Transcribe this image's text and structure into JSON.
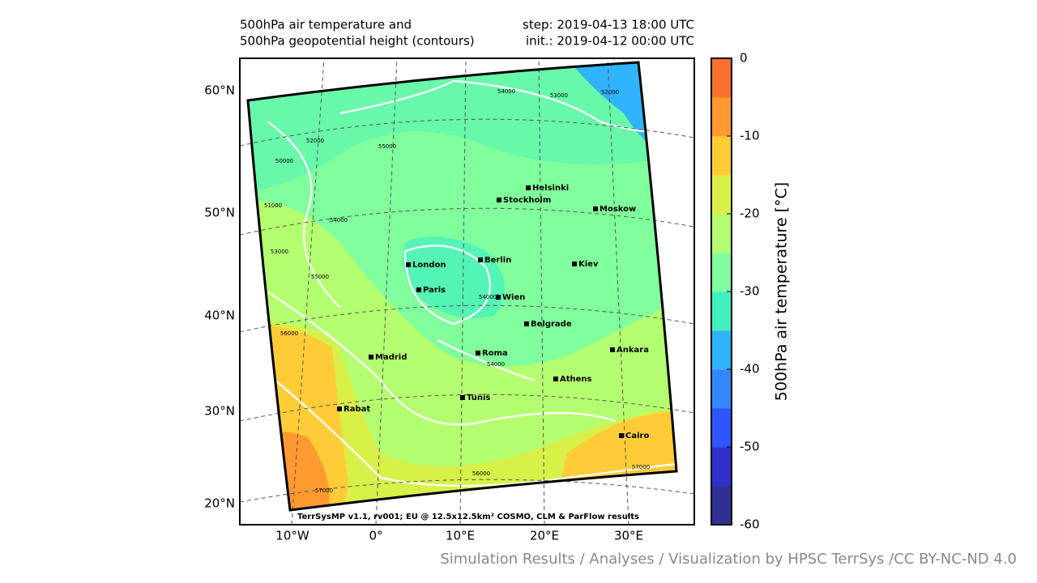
{
  "header": {
    "title_lines": [
      "500hPa air temperature and",
      "500hPa geopotential height (contours)"
    ],
    "step": "step: 2019-04-13 18:00 UTC",
    "init": "init.: 2019-04-12 00:00 UTC"
  },
  "map": {
    "lat_labels": [
      "60°N",
      "50°N",
      "40°N",
      "30°N",
      "20°N"
    ],
    "lon_labels": [
      "10°W",
      "0°",
      "10°E",
      "20°E",
      "30°E"
    ],
    "cities": [
      "London",
      "Paris",
      "Berlin",
      "Stockholm",
      "Helsinki",
      "Moskow",
      "Kiev",
      "Wien",
      "Belgrade",
      "Roma",
      "Madrid",
      "Ankara",
      "Athens",
      "Tunis",
      "Rabat",
      "Cairo"
    ],
    "contour_labels": [
      "54000",
      "53000",
      "52000",
      "52000",
      "55000",
      "50000",
      "51000",
      "54000",
      "53000",
      "55000",
      "54000",
      "56000",
      "54000",
      "56000",
      "57000",
      "57000"
    ],
    "footer": "TerrSysMP v1.1, rv001; EU @ 12.5x12.5km² COSMO, CLM & ParFlow results"
  },
  "colorbar": {
    "label": "500hPa air temperature [°C]",
    "ylim": [
      -60,
      0
    ],
    "yticks": [
      0,
      -10,
      -20,
      -30,
      -40,
      -50,
      -60
    ],
    "colors": [
      "#2e3192",
      "#2f2fcc",
      "#2f55ff",
      "#3388ff",
      "#30b4ff",
      "#40f0c0",
      "#80ff9c",
      "#b4ff70",
      "#d8f048",
      "#ffcc38",
      "#ff9a30",
      "#ff7030"
    ]
  },
  "credit": "Simulation Results / Analyses / Visualization by HPSC TerrSys /CC BY-NC-ND 4.0"
}
